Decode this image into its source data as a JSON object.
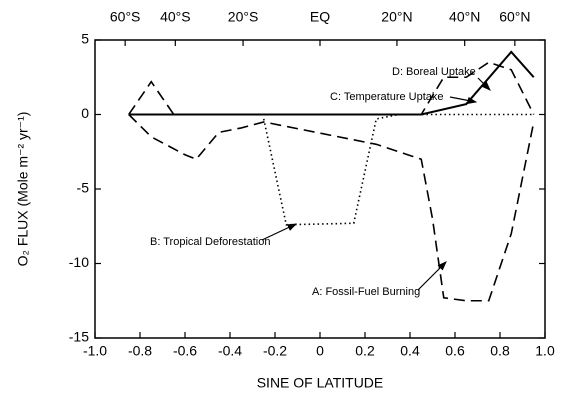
{
  "chart_data": {
    "type": "line",
    "xlabel": "SINE OF LATITUDE",
    "ylabel": "O₂ FLUX (Mole m⁻² yr⁻¹)",
    "xlim": [
      -1,
      1
    ],
    "ylim": [
      -15,
      5
    ],
    "xticks": [
      {
        "value": -1,
        "label": "-1.0"
      },
      -0.8,
      -0.6,
      -0.4,
      -0.2,
      0,
      0.2,
      0.4,
      0.6,
      0.8,
      {
        "value": 1,
        "label": "1.0"
      }
    ],
    "yticks": [
      5,
      0,
      -5,
      -10,
      -15
    ],
    "top_ticks": [
      {
        "value": -0.866,
        "label": "60°S"
      },
      {
        "value": -0.643,
        "label": "40°S"
      },
      {
        "value": -0.342,
        "label": "20°S"
      },
      {
        "value": 0,
        "label": "EQ"
      },
      {
        "value": 0.342,
        "label": "20°N"
      },
      {
        "value": 0.643,
        "label": "40°N"
      },
      {
        "value": 0.866,
        "label": "60°N"
      }
    ],
    "series": [
      {
        "name": "A: Fossil-Fuel Burning",
        "color": "#000000",
        "style": "dashed",
        "x": [
          -0.85,
          -0.75,
          -0.6,
          -0.55,
          -0.45,
          -0.35,
          -0.25,
          0.25,
          0.45,
          0.5,
          0.55,
          0.65,
          0.75,
          0.85,
          0.95
        ],
        "values": [
          0,
          -1.5,
          -2.7,
          -3,
          -1.2,
          -0.9,
          -0.5,
          -2,
          -3,
          -7,
          -12.3,
          -12.5,
          -12.5,
          -8,
          -0.5
        ]
      },
      {
        "name": "B: Tropical Deforestation",
        "color": "#000000",
        "style": "dotted",
        "x": [
          -0.25,
          -0.15,
          0.15,
          0.25,
          0.35,
          0.95
        ],
        "values": [
          -0.3,
          -7.4,
          -7.3,
          -0.3,
          0,
          0
        ]
      },
      {
        "name": "C: Temperature Uptake",
        "color": "#000000",
        "style": "solid",
        "x": [
          -0.85,
          0.45,
          0.65,
          0.85,
          0.95
        ],
        "values": [
          0,
          0,
          0.7,
          4.2,
          2.5
        ]
      },
      {
        "name": "D: Boreal Uptake",
        "color": "#000000",
        "style": "dashed",
        "x": [
          -0.85,
          -0.75,
          -0.65,
          0.45,
          0.55,
          0.65,
          0.75,
          0.85,
          0.95
        ],
        "values": [
          0,
          2.2,
          0,
          0,
          2.5,
          2.5,
          3.5,
          3,
          0
        ]
      }
    ]
  }
}
